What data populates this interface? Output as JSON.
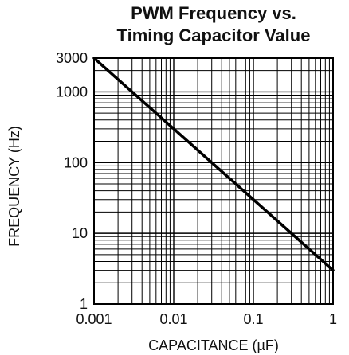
{
  "chart_data": {
    "type": "line",
    "title": "PWM Frequency vs.",
    "subtitle": "Timing Capacitor Value",
    "xlabel": "CAPACITANCE (µF)",
    "ylabel": "FREQUENCY (Hz)",
    "x_scale": "log",
    "y_scale": "log",
    "xlim": [
      0.001,
      1
    ],
    "ylim": [
      1,
      3000
    ],
    "x_ticks": [
      {
        "value": 0.001,
        "label": "0.001"
      },
      {
        "value": 0.01,
        "label": "0.01"
      },
      {
        "value": 0.1,
        "label": "0.1"
      },
      {
        "value": 1,
        "label": "1"
      }
    ],
    "y_ticks": [
      {
        "value": 1,
        "label": "1"
      },
      {
        "value": 10,
        "label": "10"
      },
      {
        "value": 100,
        "label": "100"
      },
      {
        "value": 1000,
        "label": "1000"
      },
      {
        "value": 3000,
        "label": "3000"
      }
    ],
    "grid": true,
    "legend": "none",
    "series": [
      {
        "x": [
          0.001,
          0.01,
          0.1,
          1
        ],
        "values": [
          3000,
          300,
          30,
          3
        ],
        "color": "#000000"
      }
    ]
  }
}
